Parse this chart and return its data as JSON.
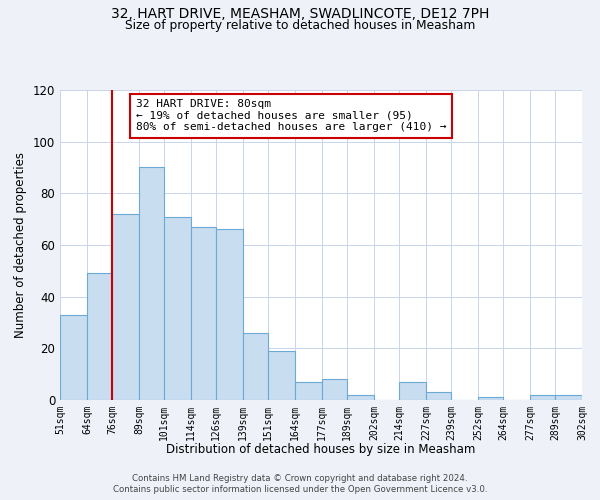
{
  "title": "32, HART DRIVE, MEASHAM, SWADLINCOTE, DE12 7PH",
  "subtitle": "Size of property relative to detached houses in Measham",
  "xlabel": "Distribution of detached houses by size in Measham",
  "ylabel": "Number of detached properties",
  "bar_color": "#c9ddf0",
  "bar_edge_color": "#6aaad4",
  "bin_edges": [
    51,
    64,
    76,
    89,
    101,
    114,
    126,
    139,
    151,
    164,
    177,
    189,
    202,
    214,
    227,
    239,
    252,
    264,
    277,
    289,
    302
  ],
  "bar_heights": [
    33,
    49,
    72,
    90,
    71,
    67,
    66,
    26,
    19,
    7,
    8,
    2,
    0,
    7,
    3,
    0,
    1,
    0,
    2,
    2
  ],
  "tick_labels": [
    "51sqm",
    "64sqm",
    "76sqm",
    "89sqm",
    "101sqm",
    "114sqm",
    "126sqm",
    "139sqm",
    "151sqm",
    "164sqm",
    "177sqm",
    "189sqm",
    "202sqm",
    "214sqm",
    "227sqm",
    "239sqm",
    "252sqm",
    "264sqm",
    "277sqm",
    "289sqm",
    "302sqm"
  ],
  "ylim": [
    0,
    120
  ],
  "yticks": [
    0,
    20,
    40,
    60,
    80,
    100,
    120
  ],
  "vline_x": 76,
  "vline_color": "#cc0000",
  "annotation_title": "32 HART DRIVE: 80sqm",
  "annotation_line1": "← 19% of detached houses are smaller (95)",
  "annotation_line2": "80% of semi-detached houses are larger (410) →",
  "annotation_box_color": "#ffffff",
  "annotation_box_edgecolor": "#cc0000",
  "footer_line1": "Contains HM Land Registry data © Crown copyright and database right 2024.",
  "footer_line2": "Contains public sector information licensed under the Open Government Licence v3.0.",
  "background_color": "#eef2f8",
  "plot_bg_color": "#ffffff"
}
